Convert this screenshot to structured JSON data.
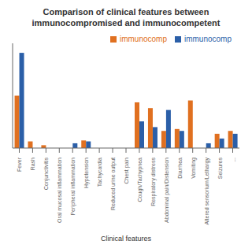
{
  "chart_data": {
    "type": "bar",
    "title": "Comparison of clinical features between\nimmunocompromised and immunocompetent",
    "x_label": "Clinical features",
    "categories": [
      "Fever",
      "Rash",
      "Conjunctivitis",
      "Oral mucosal inflammation",
      "Peripheral inflammation",
      "Hypotension",
      "Tachycardia",
      "Reduced urine output",
      "Chest pain",
      "Cough/Tachypnea",
      "Respiratory distress",
      "Abdominal pain/Distension",
      "Diarrhea",
      "Vomiting",
      "Altered sensorium/Lethargy",
      "Seizures",
      "..."
    ],
    "series": [
      {
        "name": "immunocomp",
        "color": "#E07020",
        "values": [
          55,
          7,
          3,
          0,
          0,
          8,
          0,
          0,
          0,
          48,
          42,
          18,
          20,
          50,
          0,
          15,
          18
        ]
      },
      {
        "name": "immunocomp",
        "color": "#2B5FA8",
        "values": [
          100,
          0,
          0,
          0,
          5,
          7,
          0,
          0,
          0,
          28,
          22,
          40,
          18,
          0,
          5,
          10,
          15
        ]
      }
    ],
    "ylim": [
      0,
      110
    ],
    "grid": false,
    "legend": "upper right",
    "tick_labels": "x"
  }
}
